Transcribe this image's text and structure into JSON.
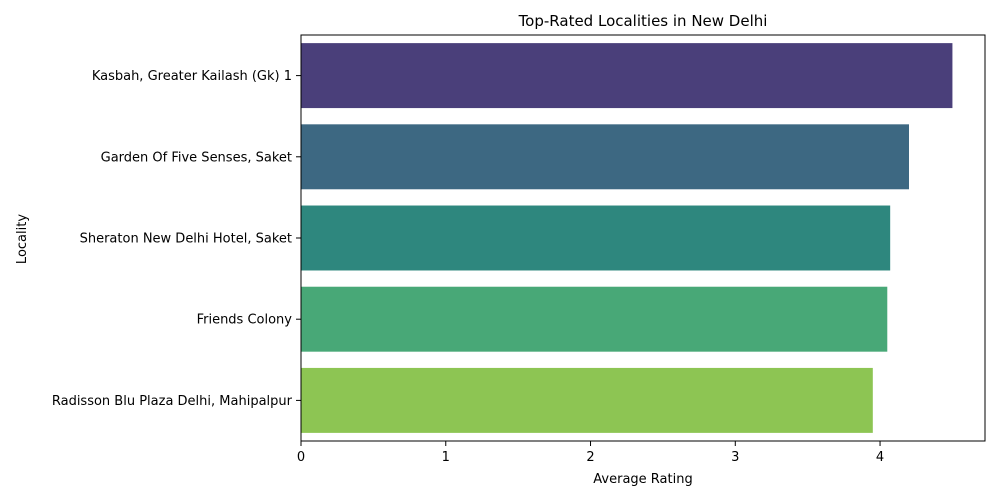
{
  "chart_data": {
    "type": "bar",
    "orientation": "horizontal",
    "title": "Top-Rated Localities in New Delhi",
    "xlabel": "Average Rating",
    "ylabel": "Locality",
    "categories": [
      "Kasbah, Greater Kailash (Gk) 1",
      "Garden Of Five Senses, Saket",
      "Sheraton New Delhi Hotel, Saket",
      "Friends Colony",
      "Radisson Blu Plaza Delhi, Mahipalpur"
    ],
    "values": [
      4.5,
      4.2,
      4.07,
      4.05,
      3.95
    ],
    "colors": [
      "#4a3f7a",
      "#3d6882",
      "#2e877e",
      "#48a877",
      "#8dc553"
    ],
    "xlim": [
      0,
      4.725
    ],
    "xticks": [
      0,
      1,
      2,
      3,
      4
    ],
    "grid": false,
    "legend": "none"
  }
}
